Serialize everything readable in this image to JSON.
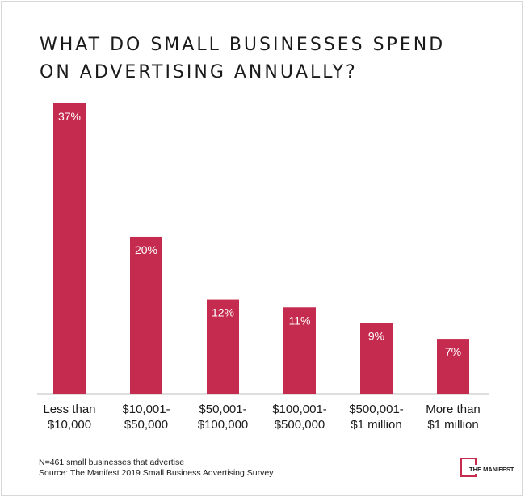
{
  "chart_data": {
    "type": "bar",
    "title_lines": [
      "WHAT DO SMALL BUSINESSES SPEND",
      "ON ADVERTISING ANNUALLY?"
    ],
    "categories": [
      [
        "Less than",
        "$10,000"
      ],
      [
        "$10,001-",
        "$50,000"
      ],
      [
        "$50,001-",
        "$100,000"
      ],
      [
        "$100,001-",
        "$500,000"
      ],
      [
        "$500,001-",
        "$1 million"
      ],
      [
        "More than",
        "$1 million"
      ]
    ],
    "values": [
      37,
      20,
      12,
      11,
      9,
      7
    ],
    "data_labels": [
      "37%",
      "20%",
      "12%",
      "11%",
      "9%",
      "7%"
    ],
    "ylim": [
      0,
      37
    ],
    "bar_color": "#c42b4e",
    "grid": false,
    "legend": "none"
  },
  "footnote": {
    "sample": "N=461 small businesses that advertise",
    "source": "Source: The Manifest 2019 Small Business Advertising Survey"
  },
  "logo": {
    "text": "THE MANIFEST",
    "color": "#c42b4e"
  }
}
